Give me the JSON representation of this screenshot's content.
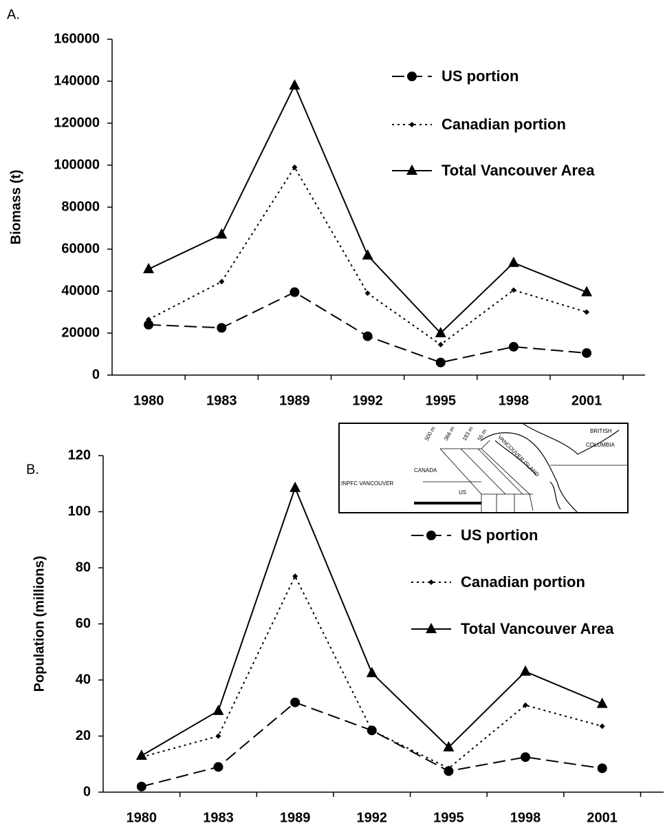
{
  "chart_data": [
    {
      "type": "line",
      "panel_label": "A.",
      "y_label": "Biomass (t)",
      "categories": [
        "1980",
        "1983",
        "1989",
        "1992",
        "1995",
        "1998",
        "2001"
      ],
      "ylim": [
        0,
        160000
      ],
      "yticks": [
        0,
        20000,
        40000,
        60000,
        80000,
        100000,
        120000,
        140000,
        160000
      ],
      "series": [
        {
          "name": "US portion",
          "color": "#000000",
          "line_style": "dashed",
          "marker": "circle",
          "values": [
            24000,
            22500,
            39500,
            18500,
            6000,
            13500,
            10500
          ]
        },
        {
          "name": "Canadian portion",
          "color": "#000000",
          "line_style": "dotted",
          "marker": "diamond",
          "values": [
            26500,
            44500,
            99000,
            39000,
            14500,
            40500,
            30000
          ]
        },
        {
          "name": "Total Vancouver Area",
          "color": "#000000",
          "line_style": "solid",
          "marker": "triangle",
          "values": [
            50500,
            67000,
            138000,
            57000,
            20000,
            53500,
            39500
          ]
        }
      ]
    },
    {
      "type": "line",
      "panel_label": "B.",
      "y_label": "Population (millions)",
      "categories": [
        "1980",
        "1983",
        "1989",
        "1992",
        "1995",
        "1998",
        "2001"
      ],
      "ylim": [
        0,
        120
      ],
      "yticks": [
        0,
        20,
        40,
        60,
        80,
        100,
        120
      ],
      "series": [
        {
          "name": "US portion",
          "color": "#000000",
          "line_style": "dashed",
          "marker": "circle",
          "values": [
            2,
            9,
            32,
            22,
            7.5,
            12.5,
            8.5
          ]
        },
        {
          "name": "Canadian portion",
          "color": "#000000",
          "line_style": "dotted",
          "marker": "diamond",
          "values": [
            12.5,
            20,
            77,
            22,
            8.5,
            31,
            23.5
          ]
        },
        {
          "name": "Total Vancouver Area",
          "color": "#000000",
          "line_style": "solid",
          "marker": "triangle",
          "values": [
            13,
            29,
            108.5,
            42.5,
            16,
            43,
            31.5
          ]
        }
      ]
    }
  ],
  "inset_map": {
    "british": "BRITISH",
    "columbia": "COLUMBIA",
    "canada": "CANADA",
    "inpfc": "INPFC VANCOUVER",
    "us": "US",
    "island": "VANCOUVER ISLAND",
    "depths": [
      "500 m",
      "366 m",
      "183 m",
      "55 m"
    ]
  }
}
